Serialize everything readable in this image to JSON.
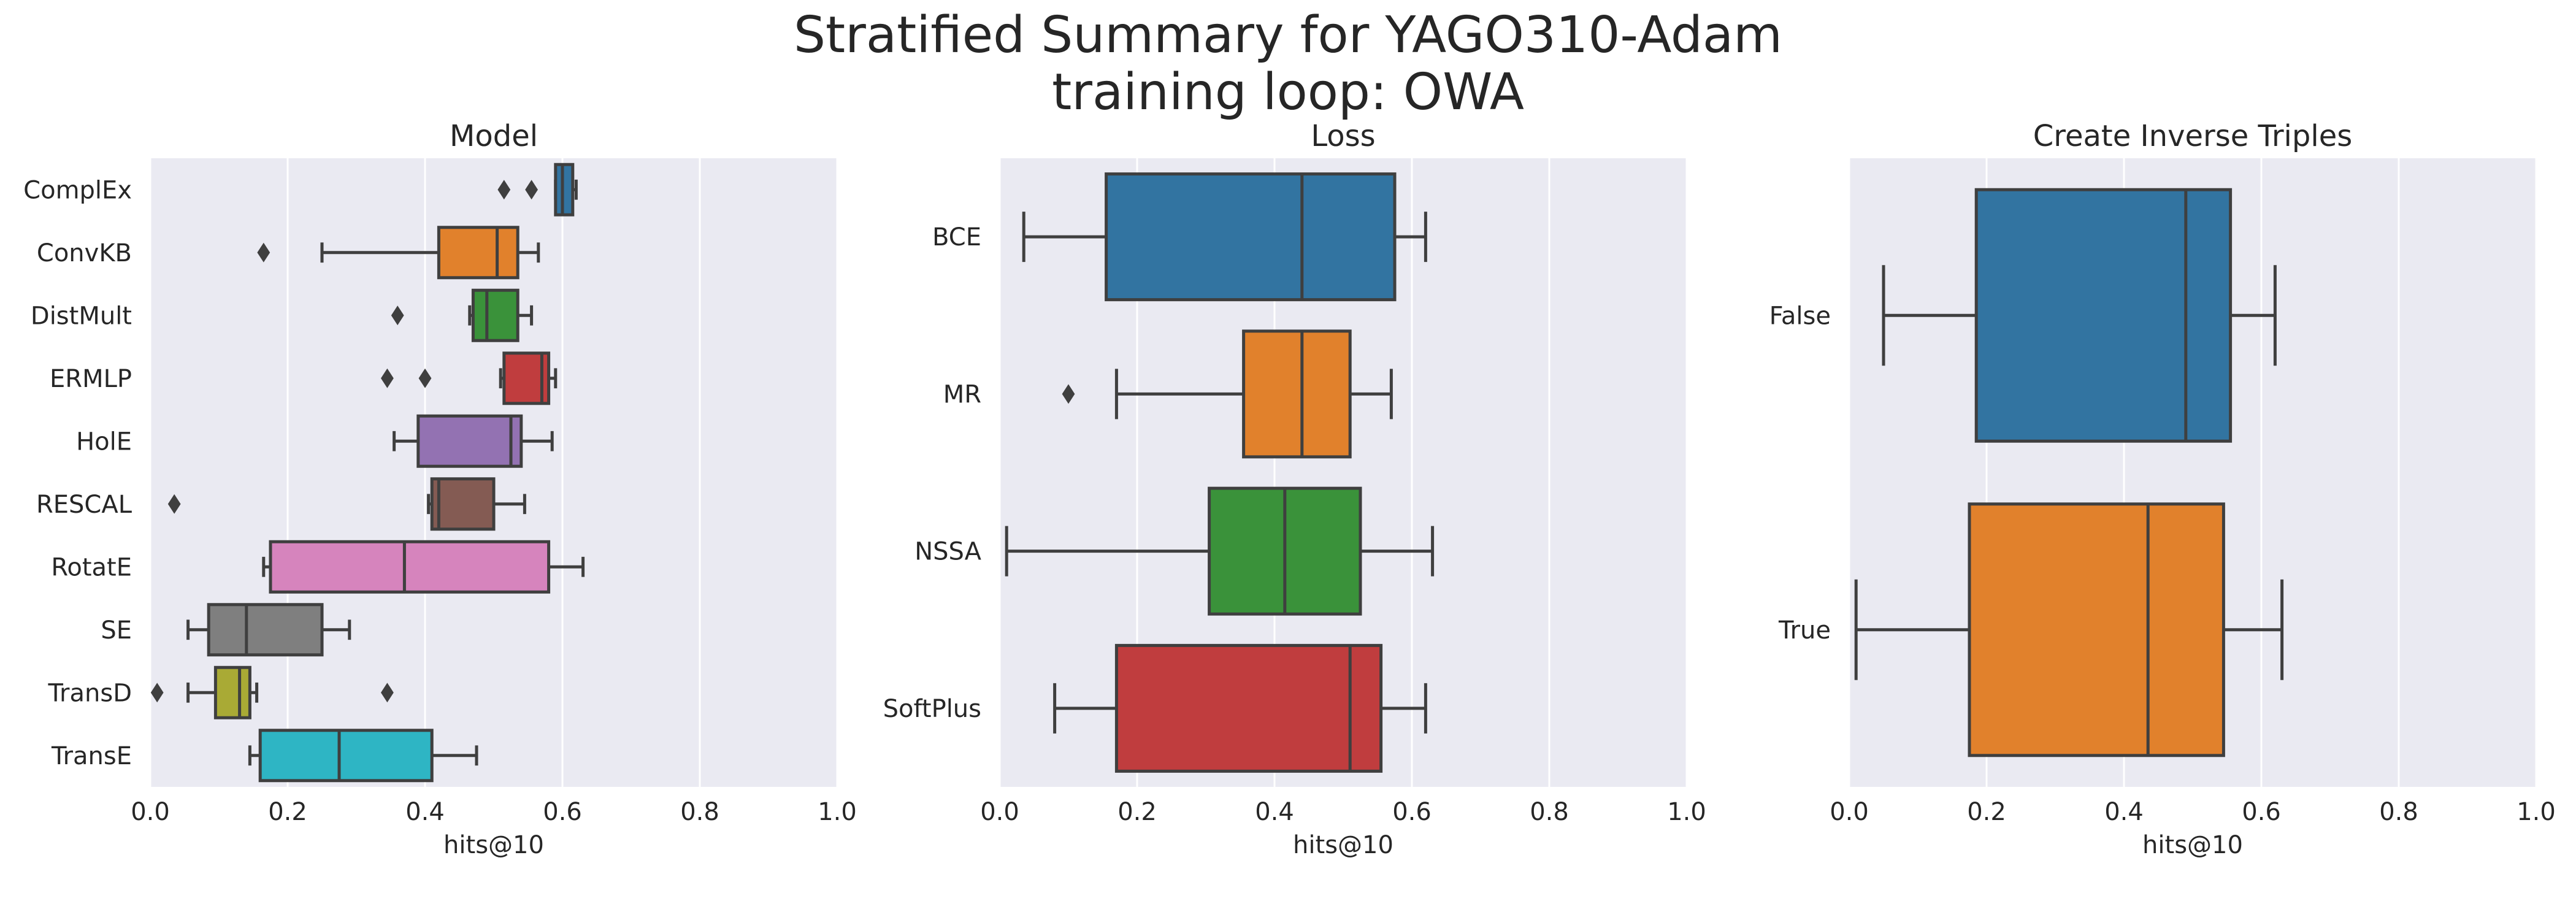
{
  "figure": {
    "title_line1": "Stratified Summary for YAGO310-Adam",
    "title_line2": "training loop: OWA"
  },
  "chart_data": [
    {
      "type": "box",
      "orientation": "horizontal",
      "title": "Model",
      "xlabel": "hits@10",
      "ylabel": "",
      "xlim": [
        0,
        1
      ],
      "xticks": [
        "0.0",
        "0.2",
        "0.4",
        "0.6",
        "0.8",
        "1.0"
      ],
      "grid": true,
      "categories": [
        "ComplEx",
        "ConvKB",
        "DistMult",
        "ERMLP",
        "HolE",
        "RESCAL",
        "RotatE",
        "SE",
        "TransD",
        "TransE"
      ],
      "colors": [
        "#3274a1",
        "#e1812c",
        "#3a923a",
        "#c03d3e",
        "#9372b2",
        "#845b53",
        "#d684bd",
        "#7f7f7f",
        "#a9aa35",
        "#2eb5c4"
      ],
      "boxes": [
        {
          "whisker_low": 0.59,
          "q1": 0.59,
          "median": 0.6,
          "q3": 0.615,
          "whisker_high": 0.62,
          "outliers": [
            0.515,
            0.555
          ]
        },
        {
          "whisker_low": 0.25,
          "q1": 0.42,
          "median": 0.505,
          "q3": 0.535,
          "whisker_high": 0.565,
          "outliers": [
            0.165
          ]
        },
        {
          "whisker_low": 0.465,
          "q1": 0.47,
          "median": 0.49,
          "q3": 0.535,
          "whisker_high": 0.555,
          "outliers": [
            0.36
          ]
        },
        {
          "whisker_low": 0.51,
          "q1": 0.515,
          "median": 0.57,
          "q3": 0.58,
          "whisker_high": 0.59,
          "outliers": [
            0.345,
            0.4
          ]
        },
        {
          "whisker_low": 0.355,
          "q1": 0.39,
          "median": 0.525,
          "q3": 0.54,
          "whisker_high": 0.585,
          "outliers": []
        },
        {
          "whisker_low": 0.405,
          "q1": 0.41,
          "median": 0.42,
          "q3": 0.5,
          "whisker_high": 0.545,
          "outliers": [
            0.035
          ]
        },
        {
          "whisker_low": 0.165,
          "q1": 0.175,
          "median": 0.37,
          "q3": 0.58,
          "whisker_high": 0.63,
          "outliers": []
        },
        {
          "whisker_low": 0.055,
          "q1": 0.085,
          "median": 0.14,
          "q3": 0.25,
          "whisker_high": 0.29,
          "outliers": []
        },
        {
          "whisker_low": 0.055,
          "q1": 0.095,
          "median": 0.13,
          "q3": 0.145,
          "whisker_high": 0.155,
          "outliers": [
            0.01,
            0.345
          ]
        },
        {
          "whisker_low": 0.145,
          "q1": 0.16,
          "median": 0.275,
          "q3": 0.41,
          "whisker_high": 0.475,
          "outliers": []
        }
      ]
    },
    {
      "type": "box",
      "orientation": "horizontal",
      "title": "Loss",
      "xlabel": "hits@10",
      "ylabel": "",
      "xlim": [
        0,
        1
      ],
      "xticks": [
        "0.0",
        "0.2",
        "0.4",
        "0.6",
        "0.8",
        "1.0"
      ],
      "grid": true,
      "categories": [
        "BCE",
        "MR",
        "NSSA",
        "SoftPlus"
      ],
      "colors": [
        "#3274a1",
        "#e1812c",
        "#3a923a",
        "#c03d3e"
      ],
      "boxes": [
        {
          "whisker_low": 0.035,
          "q1": 0.155,
          "median": 0.44,
          "q3": 0.575,
          "whisker_high": 0.62,
          "outliers": []
        },
        {
          "whisker_low": 0.17,
          "q1": 0.355,
          "median": 0.44,
          "q3": 0.51,
          "whisker_high": 0.57,
          "outliers": [
            0.1
          ]
        },
        {
          "whisker_low": 0.01,
          "q1": 0.305,
          "median": 0.415,
          "q3": 0.525,
          "whisker_high": 0.63,
          "outliers": []
        },
        {
          "whisker_low": 0.08,
          "q1": 0.17,
          "median": 0.51,
          "q3": 0.555,
          "whisker_high": 0.62,
          "outliers": []
        }
      ]
    },
    {
      "type": "box",
      "orientation": "horizontal",
      "title": "Create Inverse Triples",
      "xlabel": "hits@10",
      "ylabel": "",
      "xlim": [
        0,
        1
      ],
      "xticks": [
        "0.0",
        "0.2",
        "0.4",
        "0.6",
        "0.8",
        "1.0"
      ],
      "grid": true,
      "categories": [
        "False",
        "True"
      ],
      "colors": [
        "#3274a1",
        "#e1812c"
      ],
      "boxes": [
        {
          "whisker_low": 0.05,
          "q1": 0.185,
          "median": 0.49,
          "q3": 0.555,
          "whisker_high": 0.62,
          "outliers": []
        },
        {
          "whisker_low": 0.01,
          "q1": 0.175,
          "median": 0.435,
          "q3": 0.545,
          "whisker_high": 0.63,
          "outliers": []
        }
      ]
    }
  ]
}
